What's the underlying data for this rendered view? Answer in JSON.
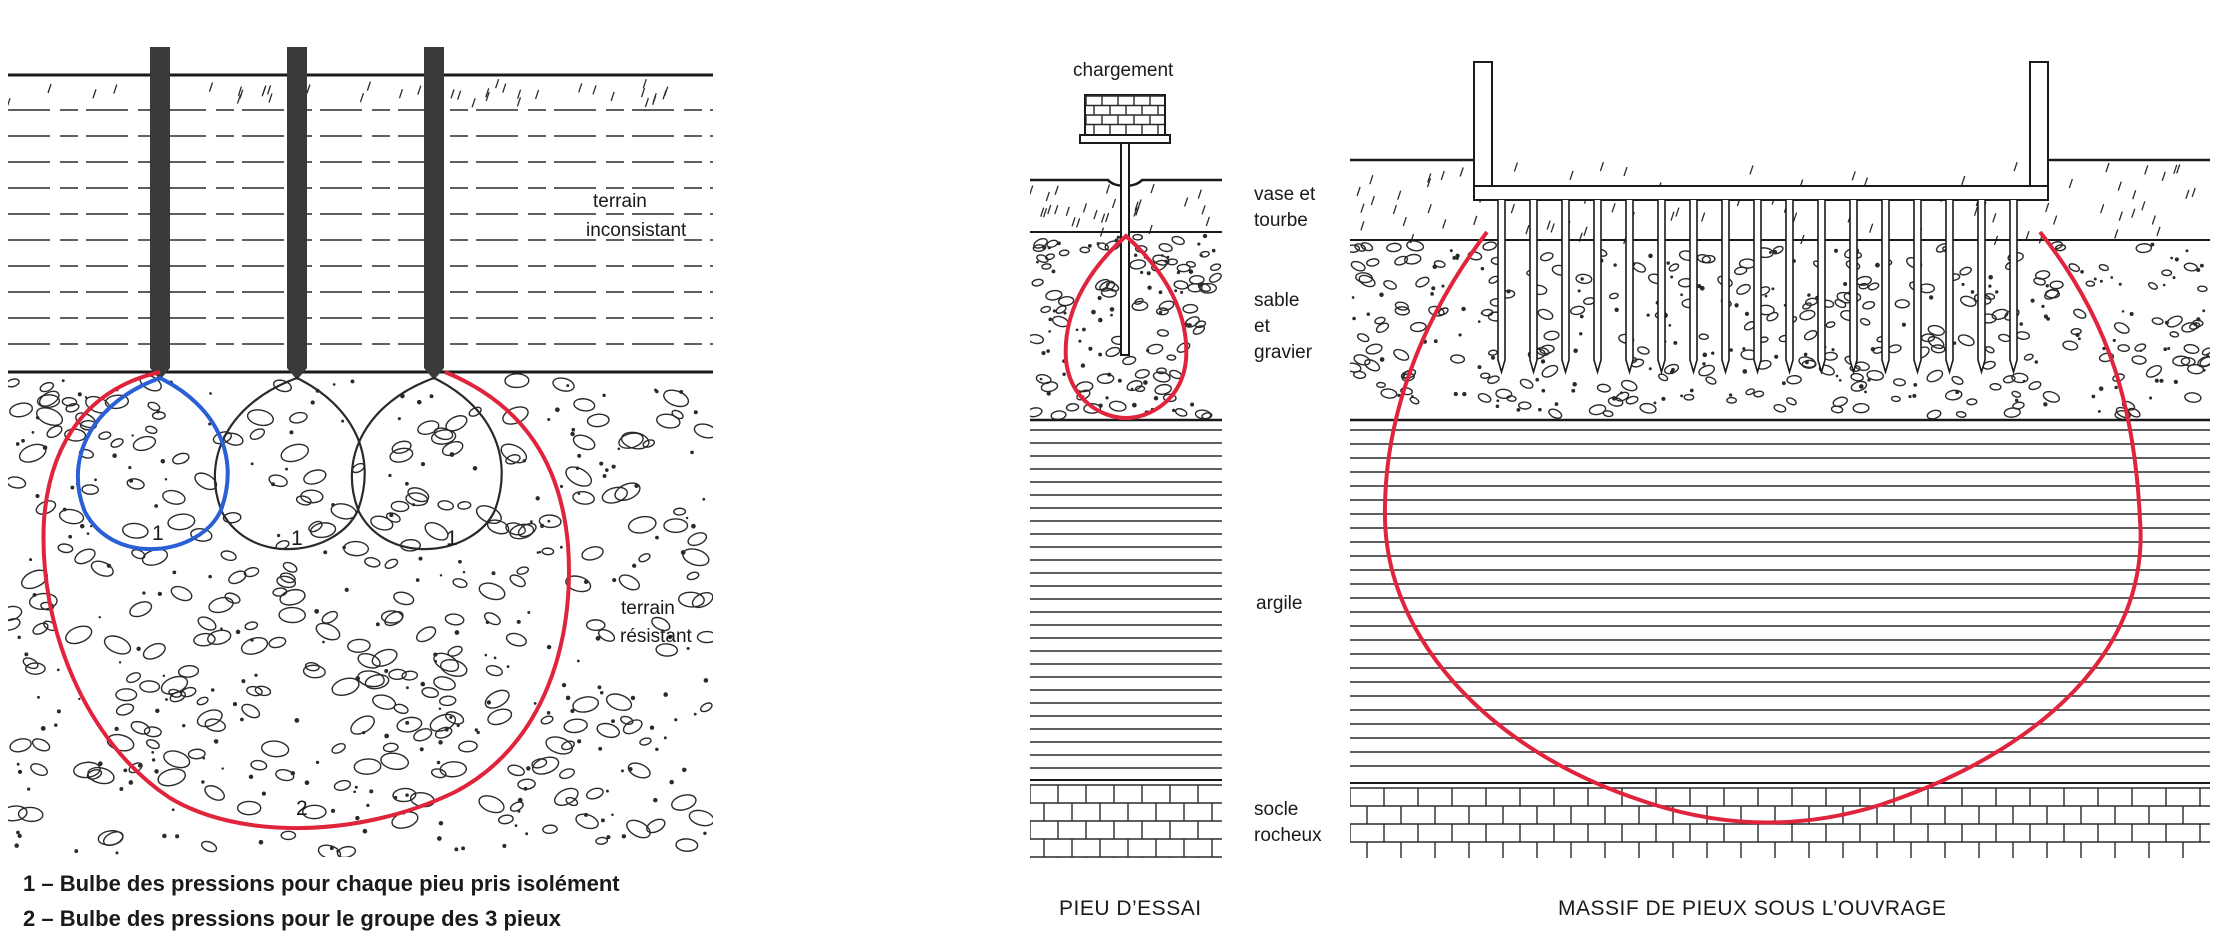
{
  "left_panel": {
    "label_terrain_inconsistant": [
      "terrain",
      "inconsistant"
    ],
    "label_terrain_resistant": [
      "terrain",
      "résistant"
    ],
    "bulb_number_single": "1",
    "bulb_number_group": "2",
    "legend": [
      "1 – Bulbe des pressions pour chaque pieu pris isolément",
      "2 – Bulbe des pressions pour le groupe des 3 pieux"
    ]
  },
  "middle_panel": {
    "label_chargement": "chargement",
    "caption": "PIEU D’ESSAI"
  },
  "layer_labels": {
    "vase_tourbe": [
      "vase et",
      "tourbe"
    ],
    "sable_gravier": [
      "sable",
      "et",
      "gravier"
    ],
    "argile": "argile",
    "socle_rocheux": [
      "socle",
      "rocheux"
    ]
  },
  "right_panel": {
    "caption": "MASSIF DE PIEUX SOUS L’OUVRAGE"
  },
  "colors": {
    "ink": "#1a1a1a",
    "pile": "#3a3a3a",
    "group_bulb_red": "#e0243c",
    "single_bulb_blue": "#2a5fd6"
  }
}
